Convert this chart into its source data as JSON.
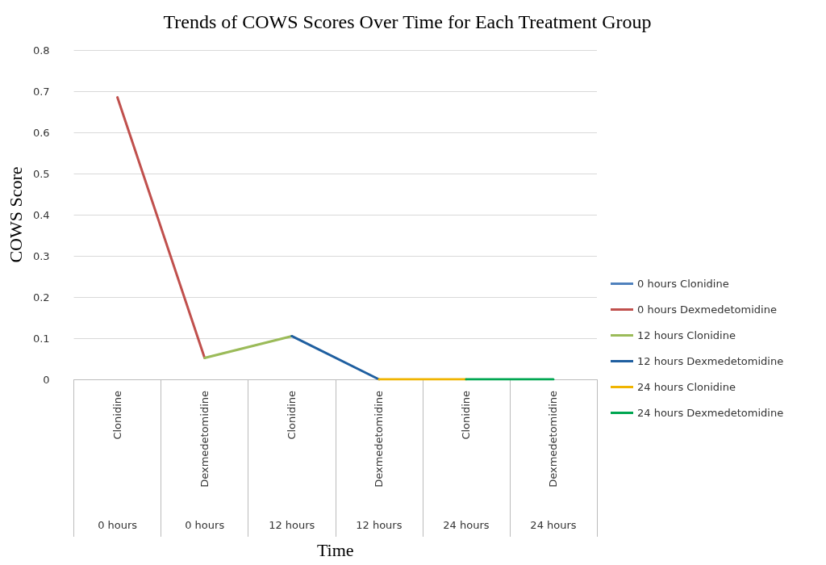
{
  "chart_data": {
    "type": "line",
    "title": "Trends of COWS Scores Over Time for Each Treatment Group",
    "xlabel": "Time",
    "ylabel": "COWS Score",
    "categories": [
      "Clonidine",
      "Dexmedetomidine",
      "Clonidine",
      "Dexmedetomidine",
      "Clonidine",
      "Dexmedetomidine"
    ],
    "annotations": [
      "0 hours",
      "0 hours",
      "12 hours",
      "12 hours",
      "24 hours",
      "24 hours"
    ],
    "series": [
      {
        "name": "0 hours Clonidine",
        "color": "#4f81bd",
        "values": [
          null,
          null,
          null,
          null,
          null,
          null
        ]
      },
      {
        "name": "0 hours Dexmedetomidine",
        "color": "#c0504d",
        "values": [
          0.685,
          0.052,
          null,
          null,
          null,
          null
        ]
      },
      {
        "name": "12 hours Clonidine",
        "color": "#9bbb59",
        "values": [
          null,
          0.052,
          0.105,
          null,
          null,
          null
        ]
      },
      {
        "name": "12 hours Dexmedetomidine",
        "color": "#1f5fa0",
        "values": [
          null,
          null,
          0.105,
          0,
          null,
          null
        ]
      },
      {
        "name": "24 hours Clonidine",
        "color": "#f0b400",
        "values": [
          null,
          null,
          null,
          0,
          0,
          null
        ]
      },
      {
        "name": "24 hours Dexmedetomidine",
        "color": "#00a651",
        "values": [
          null,
          null,
          null,
          null,
          0,
          0
        ]
      }
    ],
    "ylim": [
      0,
      0.8
    ],
    "yticks": [
      0,
      0.1,
      0.2,
      0.3,
      0.4,
      0.5,
      0.6,
      0.7,
      0.8
    ],
    "grid": "y",
    "legend": "right",
    "marker": "none",
    "line_style": "solid"
  }
}
